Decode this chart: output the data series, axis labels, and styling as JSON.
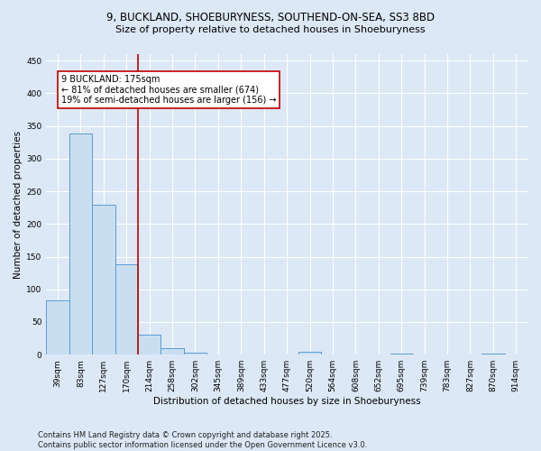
{
  "title1": "9, BUCKLAND, SHOEBURYNESS, SOUTHEND-ON-SEA, SS3 8BD",
  "title2": "Size of property relative to detached houses in Shoeburyness",
  "xlabel": "Distribution of detached houses by size in Shoeburyness",
  "ylabel": "Number of detached properties",
  "categories": [
    "39sqm",
    "83sqm",
    "127sqm",
    "170sqm",
    "214sqm",
    "258sqm",
    "302sqm",
    "345sqm",
    "389sqm",
    "433sqm",
    "477sqm",
    "520sqm",
    "564sqm",
    "608sqm",
    "652sqm",
    "695sqm",
    "739sqm",
    "783sqm",
    "827sqm",
    "870sqm",
    "914sqm"
  ],
  "values": [
    83,
    338,
    229,
    138,
    30,
    10,
    3,
    0,
    0,
    0,
    0,
    5,
    0,
    0,
    0,
    2,
    0,
    0,
    0,
    2,
    0
  ],
  "bar_color": "#c9dff0",
  "bar_edge_color": "#5b9bd5",
  "vline_color": "#c00000",
  "vline_x_idx": 3,
  "annotation_text": "9 BUCKLAND: 175sqm\n← 81% of detached houses are smaller (674)\n19% of semi-detached houses are larger (156) →",
  "annotation_box_color": "#c00000",
  "ylim": [
    0,
    460
  ],
  "yticks": [
    0,
    50,
    100,
    150,
    200,
    250,
    300,
    350,
    400,
    450
  ],
  "footer_text": "Contains HM Land Registry data © Crown copyright and database right 2025.\nContains public sector information licensed under the Open Government Licence v3.0.",
  "background_color": "#dce8f5",
  "plot_background_color": "#dce8f5",
  "grid_color": "#ffffff",
  "title_fontsize": 8.5,
  "subtitle_fontsize": 8,
  "axis_label_fontsize": 7.5,
  "tick_fontsize": 6.5,
  "annotation_fontsize": 7,
  "footer_fontsize": 6
}
